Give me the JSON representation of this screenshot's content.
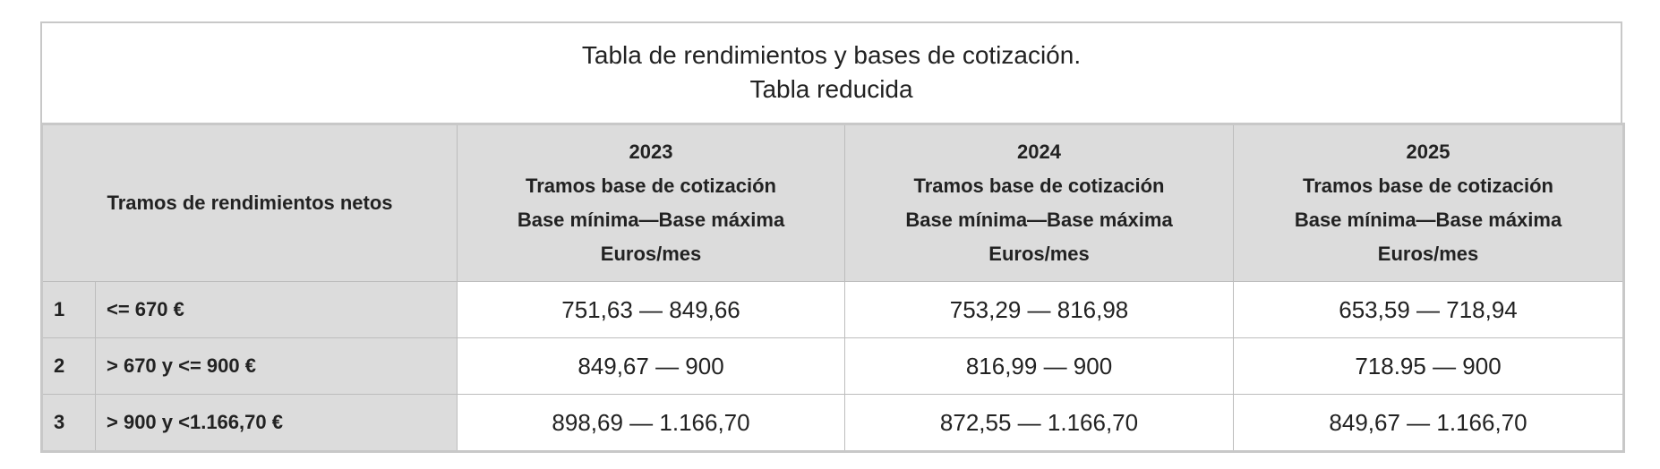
{
  "table": {
    "title": [
      "Tabla de rendimientos y bases de cotización.",
      "Tabla reducida"
    ],
    "header": {
      "first": "Tramos de rendimientos netos",
      "years": [
        [
          "2023",
          "Tramos base de cotización",
          "Base mínima—Base máxima",
          "Euros/mes"
        ],
        [
          "2024",
          "Tramos base de cotización",
          "Base mínima—Base máxima",
          "Euros/mes"
        ],
        [
          "2025",
          "Tramos base de cotización",
          "Base mínima—Base máxima",
          "Euros/mes"
        ]
      ]
    },
    "rows": [
      [
        "1",
        "<= 670 €",
        "751,63 — 849,66",
        "753,29 — 816,98",
        "653,59 — 718,94"
      ],
      [
        "2",
        "> 670 y <= 900 €",
        "849,67 — 900",
        "816,99 — 900",
        "718.95 — 900"
      ],
      [
        "3",
        "> 900 y <1.166,70 €",
        "898,69 — 1.166,70",
        "872,55 — 1.166,70",
        "849,67 — 1.166,70"
      ]
    ]
  }
}
